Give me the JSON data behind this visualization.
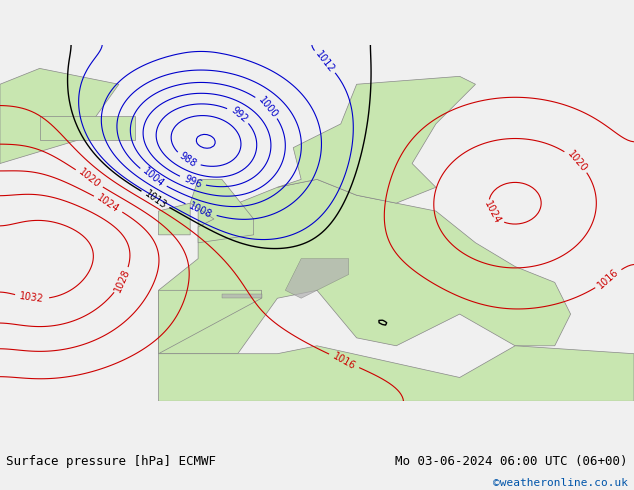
{
  "title_left": "Surface pressure [hPa] ECMWF",
  "title_right": "Mo 03-06-2024 06:00 UTC (06+00)",
  "credit": "©weatheronline.co.uk",
  "bg_color": "#d0e8f0",
  "land_color": "#c8e6b0",
  "mountain_color": "#b0b0b0",
  "contour_low_color": "#0000cc",
  "contour_high_color": "#cc0000",
  "contour_1013_color": "#000000",
  "label_fontsize": 7,
  "footer_fontsize": 9,
  "credit_fontsize": 8,
  "credit_color": "#0055aa"
}
